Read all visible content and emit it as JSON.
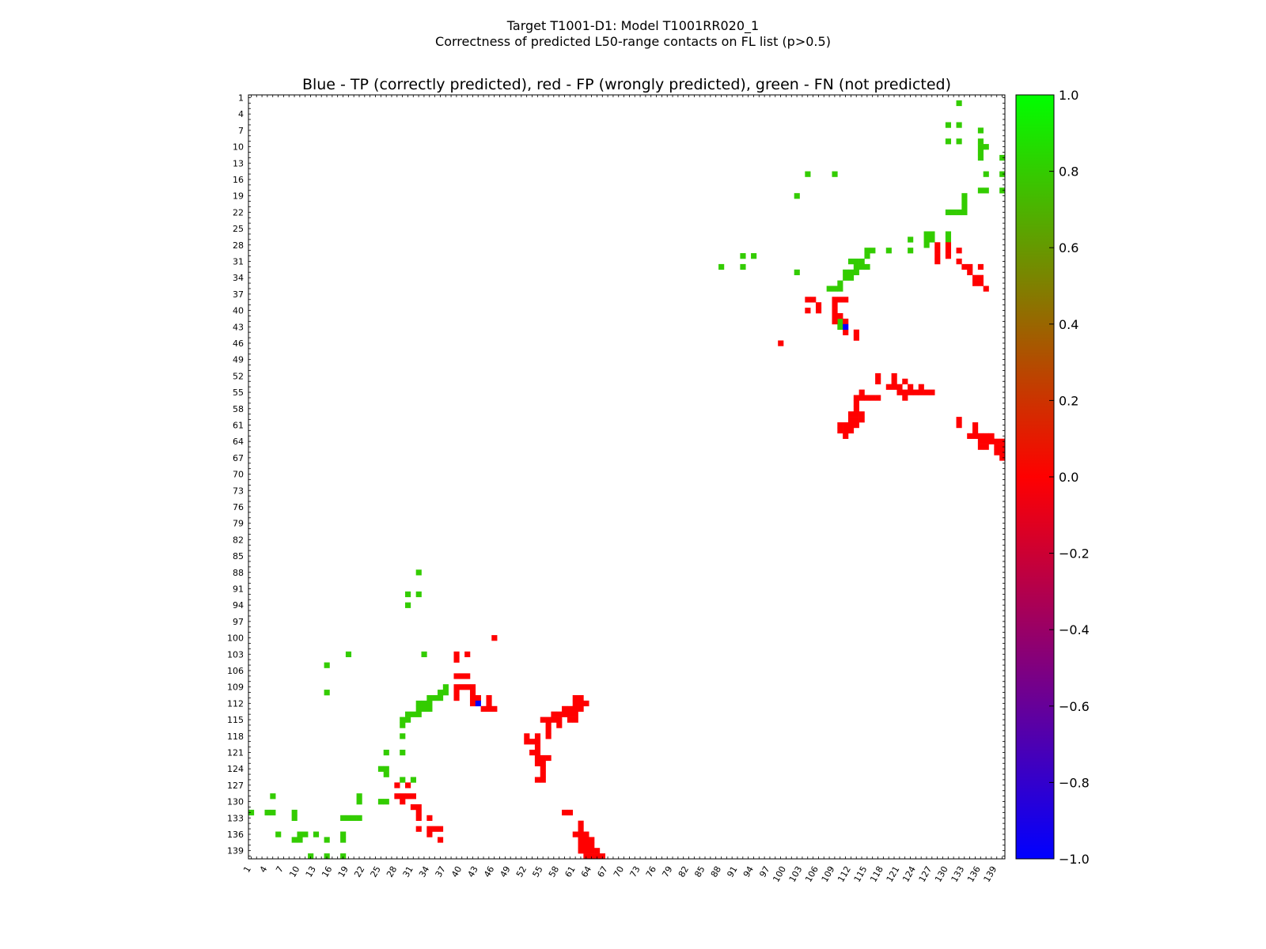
{
  "figure": {
    "title_line1": "Target T1001-D1: Model T1001RR020_1",
    "title_line2": "Correctness of predicted L50-range contacts on FL list (p>0.5)"
  },
  "chart_data": {
    "type": "heatmap",
    "title": "Blue - TP (correctly predicted), red - FP (wrongly predicted), green - FN (not predicted)",
    "xlabel": "",
    "ylabel": "",
    "xlim": [
      1,
      140
    ],
    "ylim": [
      1,
      140
    ],
    "x_ticks": [
      "1",
      "4",
      "7",
      "10",
      "13",
      "16",
      "19",
      "22",
      "25",
      "28",
      "31",
      "34",
      "37",
      "40",
      "43",
      "46",
      "49",
      "52",
      "55",
      "58",
      "61",
      "64",
      "67",
      "70",
      "73",
      "76",
      "79",
      "82",
      "85",
      "88",
      "91",
      "94",
      "97",
      "100",
      "103",
      "106",
      "109",
      "112",
      "115",
      "118",
      "121",
      "124",
      "127",
      "130",
      "133",
      "136",
      "139"
    ],
    "y_ticks": [
      "1",
      "4",
      "7",
      "10",
      "13",
      "16",
      "19",
      "22",
      "25",
      "28",
      "31",
      "34",
      "37",
      "40",
      "43",
      "46",
      "49",
      "52",
      "55",
      "58",
      "61",
      "64",
      "67",
      "70",
      "73",
      "76",
      "79",
      "82",
      "85",
      "88",
      "91",
      "94",
      "97",
      "100",
      "103",
      "106",
      "109",
      "112",
      "115",
      "118",
      "121",
      "124",
      "127",
      "130",
      "133",
      "136",
      "139"
    ],
    "colorbar": {
      "ticks": [
        "1.0",
        "0.8",
        "0.6",
        "0.4",
        "0.2",
        "0.0",
        "−0.2",
        "−0.4",
        "−0.6",
        "−0.8",
        "−1.0"
      ],
      "range": [
        -1.0,
        1.0
      ],
      "colors": [
        "#0000ff",
        "#ff0000",
        "#00ff00"
      ]
    },
    "categories": {
      "TP": {
        "value": -1.0,
        "color": "#0000ff"
      },
      "FP": {
        "value": 0.0,
        "color": "#ff0000"
      },
      "FN": {
        "value": 0.8,
        "color": "#33cc00"
      }
    },
    "cells": {
      "TP": [
        [
          111,
          43
        ],
        [
          43,
          112
        ]
      ],
      "FN": [
        [
          132,
          2
        ],
        [
          130,
          6
        ],
        [
          132,
          6
        ],
        [
          136,
          7
        ],
        [
          130,
          9
        ],
        [
          132,
          9
        ],
        [
          136,
          9
        ],
        [
          136,
          10
        ],
        [
          137,
          10
        ],
        [
          136,
          11
        ],
        [
          136,
          12
        ],
        [
          140,
          12
        ],
        [
          137,
          15
        ],
        [
          140,
          15
        ],
        [
          136,
          18
        ],
        [
          137,
          18
        ],
        [
          140,
          18
        ],
        [
          133,
          19
        ],
        [
          133,
          20
        ],
        [
          130,
          22
        ],
        [
          131,
          22
        ],
        [
          132,
          22
        ],
        [
          133,
          22
        ],
        [
          133,
          21
        ],
        [
          104,
          15
        ],
        [
          109,
          15
        ],
        [
          102,
          19
        ],
        [
          92,
          30
        ],
        [
          94,
          30
        ],
        [
          88,
          32
        ],
        [
          92,
          32
        ],
        [
          102,
          33
        ],
        [
          115,
          29
        ],
        [
          116,
          29
        ],
        [
          115,
          30
        ],
        [
          114,
          31
        ],
        [
          113,
          31
        ],
        [
          112,
          31
        ],
        [
          113,
          32
        ],
        [
          114,
          32
        ],
        [
          115,
          32
        ],
        [
          111,
          33
        ],
        [
          112,
          33
        ],
        [
          113,
          33
        ],
        [
          111,
          34
        ],
        [
          112,
          34
        ],
        [
          110,
          35
        ],
        [
          108,
          36
        ],
        [
          109,
          36
        ],
        [
          110,
          36
        ],
        [
          119,
          29
        ],
        [
          123,
          29
        ],
        [
          126,
          26
        ],
        [
          127,
          26
        ],
        [
          123,
          27
        ],
        [
          126,
          27
        ],
        [
          127,
          27
        ],
        [
          130,
          26
        ],
        [
          130,
          27
        ],
        [
          126,
          28
        ],
        [
          109,
          42
        ],
        [
          110,
          42
        ],
        [
          110,
          43
        ],
        [
          32,
          88
        ],
        [
          30,
          92
        ],
        [
          32,
          92
        ],
        [
          30,
          94
        ],
        [
          33,
          103
        ],
        [
          15,
          105
        ],
        [
          19,
          103
        ],
        [
          15,
          110
        ],
        [
          37,
          109
        ],
        [
          36,
          110
        ],
        [
          37,
          110
        ],
        [
          34,
          111
        ],
        [
          35,
          111
        ],
        [
          36,
          111
        ],
        [
          43,
          111
        ],
        [
          32,
          112
        ],
        [
          33,
          112
        ],
        [
          34,
          112
        ],
        [
          32,
          113
        ],
        [
          33,
          113
        ],
        [
          34,
          113
        ],
        [
          30,
          114
        ],
        [
          31,
          114
        ],
        [
          32,
          114
        ],
        [
          29,
          115
        ],
        [
          30,
          115
        ],
        [
          29,
          116
        ],
        [
          29,
          118
        ],
        [
          26,
          121
        ],
        [
          29,
          121
        ],
        [
          25,
          124
        ],
        [
          26,
          124
        ],
        [
          26,
          125
        ],
        [
          29,
          126
        ],
        [
          31,
          126
        ],
        [
          5,
          129
        ],
        [
          21,
          129
        ],
        [
          25,
          130
        ],
        [
          26,
          130
        ],
        [
          21,
          130
        ],
        [
          1,
          132
        ],
        [
          4,
          132
        ],
        [
          5,
          132
        ],
        [
          9,
          132
        ],
        [
          9,
          133
        ],
        [
          18,
          133
        ],
        [
          19,
          133
        ],
        [
          20,
          133
        ],
        [
          21,
          133
        ],
        [
          6,
          136
        ],
        [
          10,
          136
        ],
        [
          11,
          136
        ],
        [
          13,
          136
        ],
        [
          9,
          137
        ],
        [
          10,
          137
        ],
        [
          15,
          137
        ],
        [
          18,
          136
        ],
        [
          18,
          137
        ],
        [
          12,
          140
        ],
        [
          15,
          140
        ],
        [
          18,
          140
        ]
      ],
      "FP": [
        [
          104,
          38
        ],
        [
          105,
          38
        ],
        [
          109,
          38
        ],
        [
          110,
          38
        ],
        [
          111,
          38
        ],
        [
          106,
          39
        ],
        [
          109,
          39
        ],
        [
          104,
          40
        ],
        [
          106,
          40
        ],
        [
          109,
          40
        ],
        [
          109,
          41
        ],
        [
          110,
          41
        ],
        [
          111,
          42
        ],
        [
          109,
          42
        ],
        [
          113,
          44
        ],
        [
          111,
          44
        ],
        [
          113,
          45
        ],
        [
          99,
          46
        ],
        [
          128,
          28
        ],
        [
          130,
          28
        ],
        [
          128,
          29
        ],
        [
          130,
          29
        ],
        [
          132,
          29
        ],
        [
          128,
          30
        ],
        [
          130,
          30
        ],
        [
          128,
          31
        ],
        [
          132,
          31
        ],
        [
          133,
          32
        ],
        [
          134,
          32
        ],
        [
          136,
          32
        ],
        [
          134,
          33
        ],
        [
          135,
          34
        ],
        [
          136,
          34
        ],
        [
          135,
          35
        ],
        [
          136,
          35
        ],
        [
          137,
          36
        ],
        [
          117,
          52
        ],
        [
          120,
          52
        ],
        [
          117,
          53
        ],
        [
          120,
          53
        ],
        [
          122,
          53
        ],
        [
          119,
          54
        ],
        [
          120,
          54
        ],
        [
          121,
          54
        ],
        [
          123,
          54
        ],
        [
          125,
          54
        ],
        [
          114,
          55
        ],
        [
          121,
          55
        ],
        [
          122,
          55
        ],
        [
          123,
          55
        ],
        [
          124,
          55
        ],
        [
          125,
          55
        ],
        [
          126,
          55
        ],
        [
          127,
          55
        ],
        [
          113,
          56
        ],
        [
          114,
          56
        ],
        [
          115,
          56
        ],
        [
          116,
          56
        ],
        [
          117,
          56
        ],
        [
          122,
          56
        ],
        [
          113,
          57
        ],
        [
          113,
          58
        ],
        [
          112,
          59
        ],
        [
          113,
          59
        ],
        [
          114,
          59
        ],
        [
          112,
          60
        ],
        [
          113,
          60
        ],
        [
          114,
          60
        ],
        [
          110,
          61
        ],
        [
          111,
          61
        ],
        [
          112,
          61
        ],
        [
          113,
          61
        ],
        [
          110,
          62
        ],
        [
          111,
          62
        ],
        [
          112,
          62
        ],
        [
          111,
          63
        ],
        [
          132,
          60
        ],
        [
          132,
          61
        ],
        [
          135,
          61
        ],
        [
          135,
          62
        ],
        [
          134,
          63
        ],
        [
          135,
          63
        ],
        [
          136,
          63
        ],
        [
          137,
          63
        ],
        [
          138,
          63
        ],
        [
          136,
          64
        ],
        [
          137,
          64
        ],
        [
          138,
          64
        ],
        [
          139,
          64
        ],
        [
          140,
          64
        ],
        [
          136,
          65
        ],
        [
          137,
          65
        ],
        [
          139,
          65
        ],
        [
          140,
          65
        ],
        [
          139,
          66
        ],
        [
          140,
          66
        ],
        [
          140,
          67
        ],
        [
          46,
          100
        ],
        [
          39,
          103
        ],
        [
          41,
          103
        ],
        [
          39,
          104
        ],
        [
          39,
          107
        ],
        [
          40,
          107
        ],
        [
          41,
          107
        ],
        [
          39,
          109
        ],
        [
          40,
          109
        ],
        [
          41,
          109
        ],
        [
          42,
          109
        ],
        [
          39,
          110
        ],
        [
          42,
          110
        ],
        [
          39,
          111
        ],
        [
          42,
          111
        ],
        [
          43,
          111
        ],
        [
          45,
          111
        ],
        [
          42,
          112
        ],
        [
          45,
          112
        ],
        [
          44,
          113
        ],
        [
          45,
          113
        ],
        [
          46,
          113
        ],
        [
          61,
          111
        ],
        [
          62,
          111
        ],
        [
          61,
          112
        ],
        [
          62,
          112
        ],
        [
          63,
          112
        ],
        [
          59,
          113
        ],
        [
          60,
          113
        ],
        [
          61,
          113
        ],
        [
          62,
          113
        ],
        [
          57,
          114
        ],
        [
          58,
          114
        ],
        [
          59,
          114
        ],
        [
          60,
          114
        ],
        [
          61,
          114
        ],
        [
          55,
          115
        ],
        [
          56,
          115
        ],
        [
          57,
          115
        ],
        [
          58,
          115
        ],
        [
          60,
          115
        ],
        [
          61,
          115
        ],
        [
          56,
          116
        ],
        [
          58,
          116
        ],
        [
          56,
          117
        ],
        [
          52,
          118
        ],
        [
          54,
          118
        ],
        [
          56,
          118
        ],
        [
          52,
          119
        ],
        [
          53,
          119
        ],
        [
          54,
          119
        ],
        [
          54,
          120
        ],
        [
          53,
          121
        ],
        [
          54,
          121
        ],
        [
          54,
          122
        ],
        [
          55,
          122
        ],
        [
          56,
          122
        ],
        [
          54,
          123
        ],
        [
          55,
          123
        ],
        [
          55,
          124
        ],
        [
          55,
          125
        ],
        [
          54,
          126
        ],
        [
          55,
          126
        ],
        [
          28,
          127
        ],
        [
          30,
          127
        ],
        [
          28,
          129
        ],
        [
          29,
          129
        ],
        [
          30,
          129
        ],
        [
          31,
          129
        ],
        [
          29,
          130
        ],
        [
          31,
          131
        ],
        [
          32,
          131
        ],
        [
          32,
          132
        ],
        [
          32,
          133
        ],
        [
          34,
          133
        ],
        [
          32,
          135
        ],
        [
          34,
          135
        ],
        [
          35,
          135
        ],
        [
          36,
          135
        ],
        [
          34,
          136
        ],
        [
          36,
          137
        ],
        [
          59,
          132
        ],
        [
          60,
          132
        ],
        [
          62,
          134
        ],
        [
          62,
          135
        ],
        [
          61,
          136
        ],
        [
          62,
          136
        ],
        [
          63,
          136
        ],
        [
          62,
          137
        ],
        [
          63,
          137
        ],
        [
          64,
          137
        ],
        [
          62,
          138
        ],
        [
          63,
          138
        ],
        [
          64,
          138
        ],
        [
          62,
          139
        ],
        [
          63,
          139
        ],
        [
          64,
          139
        ],
        [
          65,
          139
        ],
        [
          63,
          140
        ],
        [
          64,
          140
        ],
        [
          65,
          140
        ],
        [
          66,
          140
        ]
      ]
    }
  }
}
